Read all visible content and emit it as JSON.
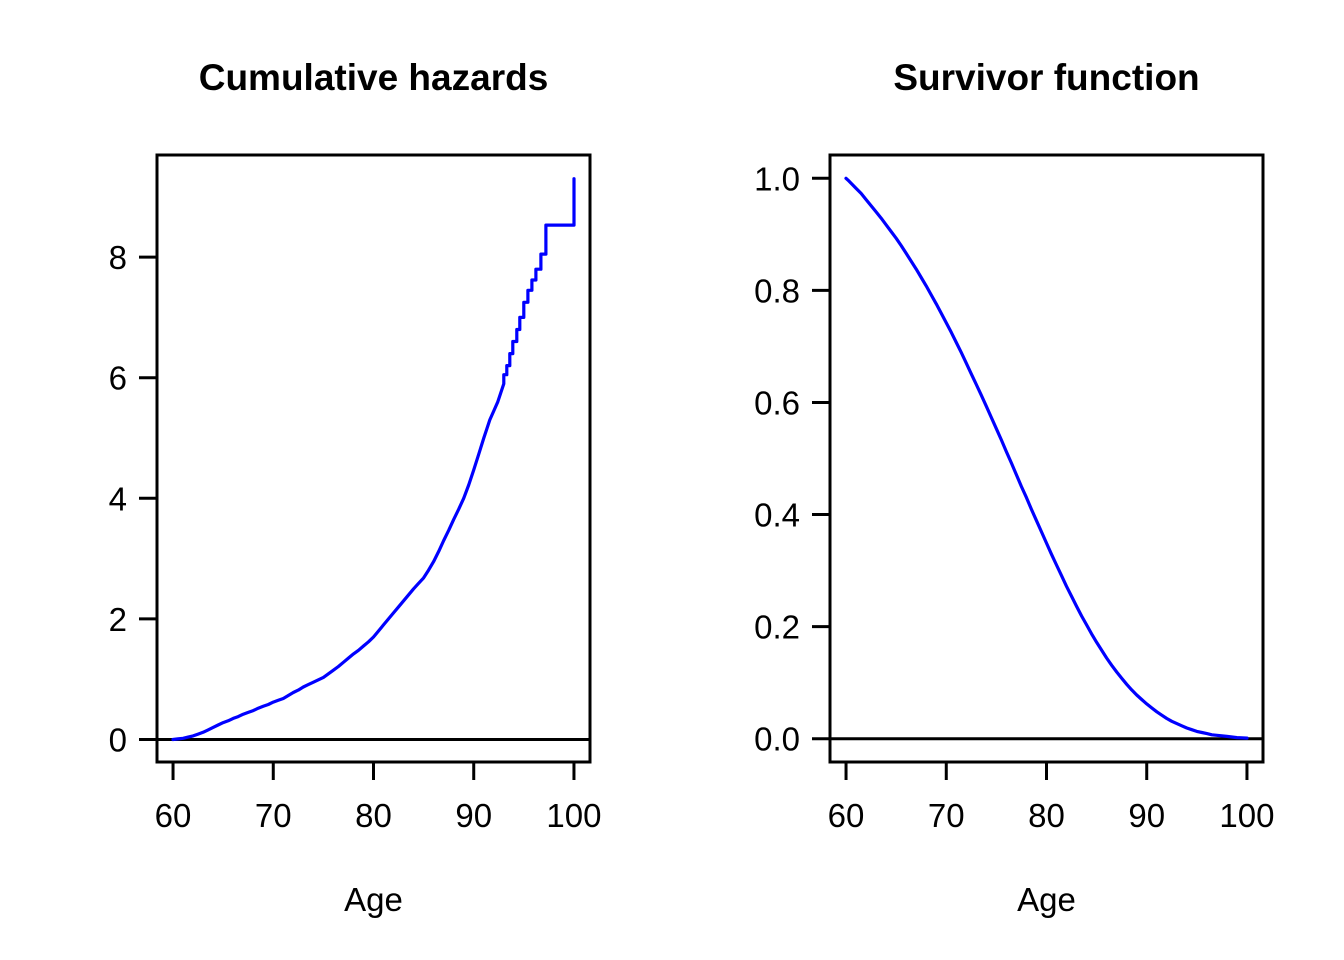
{
  "figure": {
    "background": "#ffffff",
    "axis_color": "#000000",
    "curve_color": "#0000ff"
  },
  "chart_data": [
    {
      "type": "line",
      "title": "Cumulative hazards",
      "xlabel": "Age",
      "ylabel": "",
      "xlim": [
        58.4,
        101.6
      ],
      "ylim": [
        -0.373,
        9.693
      ],
      "xticks": [
        60,
        70,
        80,
        90,
        100
      ],
      "xtick_labels": [
        "60",
        "70",
        "80",
        "90",
        "100"
      ],
      "yticks": [
        0,
        2,
        4,
        6,
        8
      ],
      "ytick_labels": [
        "0",
        "2",
        "4",
        "6",
        "8"
      ],
      "grid": false,
      "legend": null,
      "hline": 0,
      "line_color": "#0000ff",
      "series": [
        {
          "name": "cumulative-hazard",
          "points": [
            [
              60,
              0
            ],
            [
              60.5,
              0.01
            ],
            [
              61,
              0.02
            ],
            [
              61.5,
              0.04
            ],
            [
              62,
              0.06
            ],
            [
              62.5,
              0.09
            ],
            [
              63,
              0.12
            ],
            [
              63.5,
              0.16
            ],
            [
              64,
              0.2
            ],
            [
              64.5,
              0.24
            ],
            [
              65,
              0.28
            ],
            [
              65.5,
              0.31
            ],
            [
              66,
              0.35
            ],
            [
              66.5,
              0.38
            ],
            [
              67,
              0.42
            ],
            [
              67.5,
              0.45
            ],
            [
              68,
              0.48
            ],
            [
              68.5,
              0.52
            ],
            [
              69,
              0.55
            ],
            [
              69.5,
              0.58
            ],
            [
              70,
              0.62
            ],
            [
              70.5,
              0.65
            ],
            [
              71,
              0.68
            ],
            [
              71.5,
              0.73
            ],
            [
              72,
              0.78
            ],
            [
              72.5,
              0.82
            ],
            [
              73,
              0.87
            ],
            [
              73.5,
              0.91
            ],
            [
              74,
              0.95
            ],
            [
              74.5,
              0.99
            ],
            [
              75,
              1.03
            ],
            [
              75.5,
              1.09
            ],
            [
              76,
              1.15
            ],
            [
              76.5,
              1.21
            ],
            [
              77,
              1.28
            ],
            [
              77.5,
              1.35
            ],
            [
              78,
              1.42
            ],
            [
              78.5,
              1.48
            ],
            [
              79,
              1.55
            ],
            [
              79.5,
              1.62
            ],
            [
              80,
              1.7
            ],
            [
              80.5,
              1.8
            ],
            [
              81,
              1.9
            ],
            [
              81.5,
              2.0
            ],
            [
              82,
              2.1
            ],
            [
              82.5,
              2.2
            ],
            [
              83,
              2.3
            ],
            [
              83.5,
              2.4
            ],
            [
              84,
              2.5
            ],
            [
              84.5,
              2.59
            ],
            [
              85,
              2.68
            ],
            [
              85.5,
              2.81
            ],
            [
              86,
              2.95
            ],
            [
              86.5,
              3.12
            ],
            [
              87,
              3.3
            ],
            [
              87.5,
              3.47
            ],
            [
              88,
              3.65
            ],
            [
              88.5,
              3.82
            ],
            [
              89,
              4.0
            ],
            [
              89.5,
              4.22
            ],
            [
              90,
              4.47
            ],
            [
              90.5,
              4.73
            ],
            [
              91,
              5.0
            ],
            [
              91.3,
              5.15
            ],
            [
              91.6,
              5.3
            ],
            [
              92,
              5.45
            ],
            [
              92.4,
              5.6
            ],
            [
              92.7,
              5.75
            ],
            [
              93,
              5.9
            ],
            [
              93,
              6.05
            ],
            [
              93.3,
              6.05
            ],
            [
              93.3,
              6.2
            ],
            [
              93.6,
              6.2
            ],
            [
              93.6,
              6.4
            ],
            [
              93.9,
              6.4
            ],
            [
              93.9,
              6.6
            ],
            [
              94.3,
              6.6
            ],
            [
              94.3,
              6.8
            ],
            [
              94.6,
              6.8
            ],
            [
              94.6,
              7.0
            ],
            [
              95,
              7.0
            ],
            [
              95,
              7.25
            ],
            [
              95.4,
              7.25
            ],
            [
              95.4,
              7.45
            ],
            [
              95.8,
              7.45
            ],
            [
              95.8,
              7.62
            ],
            [
              96.2,
              7.62
            ],
            [
              96.2,
              7.8
            ],
            [
              96.7,
              7.8
            ],
            [
              96.7,
              8.05
            ],
            [
              97.2,
              8.05
            ],
            [
              97.2,
              8.53
            ],
            [
              100,
              8.53
            ],
            [
              100,
              9.3
            ]
          ]
        }
      ]
    },
    {
      "type": "line",
      "title": "Survivor function",
      "xlabel": "Age",
      "ylabel": "",
      "xlim": [
        58.4,
        101.6
      ],
      "ylim": [
        -0.0416,
        1.0416
      ],
      "xticks": [
        60,
        70,
        80,
        90,
        100
      ],
      "xtick_labels": [
        "60",
        "70",
        "80",
        "90",
        "100"
      ],
      "yticks": [
        0,
        0.2,
        0.4,
        0.6,
        0.8,
        1.0
      ],
      "ytick_labels": [
        "0.0",
        "0.2",
        "0.4",
        "0.6",
        "0.8",
        "1.0"
      ],
      "grid": false,
      "legend": null,
      "hline": 0,
      "line_color": "#0000ff",
      "series": [
        {
          "name": "survivor-function",
          "points": [
            [
              60,
              1.0
            ],
            [
              60.3,
              0.995
            ],
            [
              61,
              0.982
            ],
            [
              61.5,
              0.973
            ],
            [
              62,
              0.962
            ],
            [
              62.5,
              0.951
            ],
            [
              63,
              0.94
            ],
            [
              63.5,
              0.929
            ],
            [
              64,
              0.917
            ],
            [
              64.5,
              0.905
            ],
            [
              65,
              0.893
            ],
            [
              65.5,
              0.88
            ],
            [
              66,
              0.866
            ],
            [
              66.5,
              0.852
            ],
            [
              67,
              0.838
            ],
            [
              67.5,
              0.823
            ],
            [
              68,
              0.808
            ],
            [
              68.5,
              0.792
            ],
            [
              69,
              0.776
            ],
            [
              69.5,
              0.759
            ],
            [
              70,
              0.742
            ],
            [
              70.5,
              0.725
            ],
            [
              71,
              0.707
            ],
            [
              71.5,
              0.689
            ],
            [
              72,
              0.67
            ],
            [
              72.5,
              0.651
            ],
            [
              73,
              0.632
            ],
            [
              73.5,
              0.613
            ],
            [
              74,
              0.593
            ],
            [
              74.5,
              0.573
            ],
            [
              75,
              0.553
            ],
            [
              75.5,
              0.533
            ],
            [
              76,
              0.512
            ],
            [
              76.5,
              0.492
            ],
            [
              77,
              0.471
            ],
            [
              77.5,
              0.45
            ],
            [
              78,
              0.43
            ],
            [
              78.5,
              0.409
            ],
            [
              79,
              0.389
            ],
            [
              79.5,
              0.369
            ],
            [
              80,
              0.349
            ],
            [
              80.5,
              0.329
            ],
            [
              81,
              0.31
            ],
            [
              81.5,
              0.291
            ],
            [
              82,
              0.272
            ],
            [
              82.5,
              0.254
            ],
            [
              83,
              0.236
            ],
            [
              83.5,
              0.219
            ],
            [
              84,
              0.203
            ],
            [
              84.5,
              0.187
            ],
            [
              85,
              0.172
            ],
            [
              85.5,
              0.158
            ],
            [
              86,
              0.144
            ],
            [
              86.5,
              0.131
            ],
            [
              87,
              0.119
            ],
            [
              87.5,
              0.108
            ],
            [
              88,
              0.097
            ],
            [
              88.5,
              0.087
            ],
            [
              89,
              0.078
            ],
            [
              89.5,
              0.07
            ],
            [
              90,
              0.062
            ],
            [
              90.5,
              0.055
            ],
            [
              91,
              0.048
            ],
            [
              91.5,
              0.042
            ],
            [
              92,
              0.036
            ],
            [
              92.5,
              0.031
            ],
            [
              93,
              0.027
            ],
            [
              93.5,
              0.023
            ],
            [
              94,
              0.019
            ],
            [
              94.5,
              0.016
            ],
            [
              95,
              0.013
            ],
            [
              95.5,
              0.011
            ],
            [
              96,
              0.009
            ],
            [
              96.5,
              0.007
            ],
            [
              97,
              0.006
            ],
            [
              97.5,
              0.005
            ],
            [
              98,
              0.004
            ],
            [
              98.5,
              0.003
            ],
            [
              99,
              0.002
            ],
            [
              99.5,
              0.0015
            ],
            [
              100,
              0.001
            ]
          ]
        }
      ]
    }
  ]
}
